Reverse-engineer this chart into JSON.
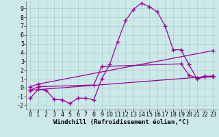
{
  "xlabel": "Windchill (Refroidissement éolien,°C)",
  "background_color": "#cce8e8",
  "grid_color": "#aad4d4",
  "line_color": "#990099",
  "x_ticks": [
    0,
    1,
    2,
    3,
    4,
    5,
    6,
    7,
    8,
    9,
    10,
    11,
    12,
    13,
    14,
    15,
    16,
    17,
    18,
    19,
    20,
    21,
    22,
    23
  ],
  "y_ticks": [
    -2,
    -1,
    0,
    1,
    2,
    3,
    4,
    5,
    6,
    7,
    8,
    9
  ],
  "xlim": [
    -0.5,
    23.5
  ],
  "ylim": [
    -2.5,
    9.8
  ],
  "line1_x": [
    0,
    1,
    2,
    3,
    4,
    5,
    6,
    7,
    8,
    9,
    10,
    11,
    12,
    13,
    14,
    15,
    16,
    17,
    18,
    19,
    20,
    21,
    22,
    23
  ],
  "line1_y": [
    -1.2,
    -0.2,
    -0.3,
    -1.3,
    -1.4,
    -1.8,
    -1.2,
    -1.2,
    -1.4,
    1.0,
    2.6,
    5.2,
    7.6,
    8.9,
    9.6,
    9.2,
    8.6,
    7.0,
    4.3,
    4.3,
    2.6,
    1.0,
    1.2,
    1.2
  ],
  "line2_x": [
    0,
    1,
    8,
    9,
    19,
    20,
    21,
    22,
    23
  ],
  "line2_y": [
    -0.3,
    0.1,
    0.3,
    2.4,
    2.7,
    1.4,
    1.1,
    1.3,
    1.3
  ],
  "line3_x": [
    0,
    1,
    23
  ],
  "line3_y": [
    0.1,
    0.4,
    4.2
  ],
  "line4_x": [
    0,
    23
  ],
  "line4_y": [
    -0.3,
    1.3
  ],
  "marker": "+",
  "markersize": 4,
  "linewidth": 0.9,
  "xlabel_fontsize": 6.5,
  "tick_fontsize": 6.0
}
